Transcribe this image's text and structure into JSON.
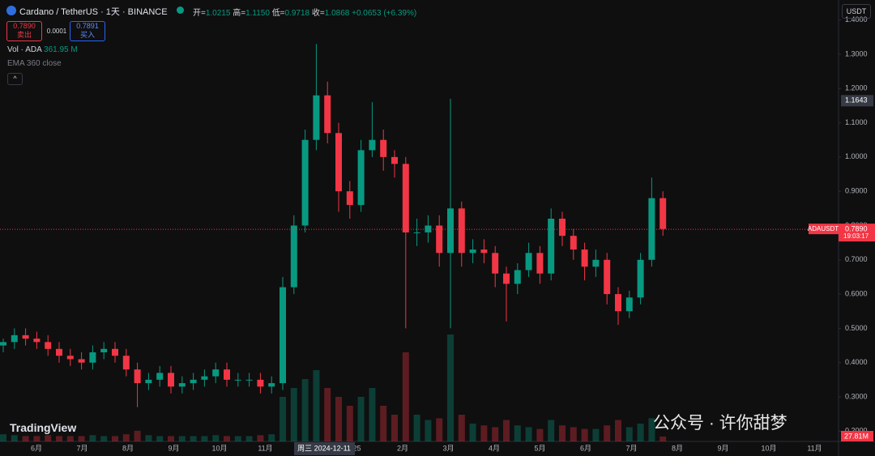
{
  "header": {
    "symbol": "Cardano / TetherUS · 1天 · BINANCE",
    "open_label": "开=",
    "open": "1.0215",
    "high_label": "高=",
    "high": "1.1150",
    "low_label": "低=",
    "low": "0.9718",
    "close_label": "收=",
    "close": "1.0868",
    "change": "+0.0653 (+6.39%)",
    "sell_price": "0.7890",
    "sell_label": "卖出",
    "spread": "0.0001",
    "buy_price": "0.7891",
    "buy_label": "买入",
    "volume_indicator": "Vol · ADA",
    "volume_value": "361.95 M",
    "ema_indicator": "EMA 360 close",
    "currency": "USDT",
    "logo": "TradingView",
    "watermark": "公众号 · 许你甜梦"
  },
  "chart_data": {
    "type": "candlestick",
    "up_color": "#089981",
    "down_color": "#f23645",
    "open": [
      0.45,
      0.46,
      0.48,
      0.47,
      0.46,
      0.44,
      0.42,
      0.41,
      0.4,
      0.43,
      0.44,
      0.42,
      0.38,
      0.34,
      0.35,
      0.37,
      0.33,
      0.34,
      0.35,
      0.36,
      0.38,
      0.35,
      0.35,
      0.35,
      0.33,
      0.34,
      0.62,
      0.8,
      1.05,
      1.18,
      1.07,
      0.9,
      0.86,
      1.02,
      1.05,
      1.0,
      0.98,
      0.78,
      0.78,
      0.8,
      0.72,
      0.85,
      0.72,
      0.73,
      0.72,
      0.66,
      0.63,
      0.67,
      0.72,
      0.66,
      0.82,
      0.77,
      0.73,
      0.68,
      0.7,
      0.6,
      0.55,
      0.59,
      0.7,
      0.88
    ],
    "high": [
      0.47,
      0.5,
      0.5,
      0.49,
      0.48,
      0.46,
      0.44,
      0.43,
      0.45,
      0.46,
      0.46,
      0.44,
      0.4,
      0.37,
      0.39,
      0.39,
      0.36,
      0.37,
      0.38,
      0.4,
      0.4,
      0.37,
      0.37,
      0.37,
      0.36,
      0.65,
      0.83,
      1.08,
      1.33,
      1.22,
      1.1,
      0.93,
      1.05,
      1.16,
      1.08,
      1.02,
      1.0,
      0.82,
      0.83,
      0.83,
      1.17,
      0.87,
      0.76,
      0.76,
      0.74,
      0.68,
      0.69,
      0.75,
      0.74,
      0.85,
      0.84,
      0.79,
      0.75,
      0.73,
      0.72,
      0.62,
      0.61,
      0.72,
      0.94,
      0.9
    ],
    "low": [
      0.43,
      0.44,
      0.45,
      0.44,
      0.42,
      0.4,
      0.39,
      0.38,
      0.38,
      0.41,
      0.4,
      0.36,
      0.27,
      0.32,
      0.33,
      0.31,
      0.31,
      0.32,
      0.33,
      0.34,
      0.33,
      0.33,
      0.33,
      0.31,
      0.31,
      0.32,
      0.6,
      0.78,
      1.02,
      1.04,
      0.84,
      0.82,
      0.84,
      1.0,
      0.96,
      0.94,
      0.5,
      0.74,
      0.75,
      0.68,
      0.5,
      0.68,
      0.69,
      0.69,
      0.62,
      0.52,
      0.6,
      0.65,
      0.63,
      0.64,
      0.74,
      0.7,
      0.64,
      0.65,
      0.57,
      0.51,
      0.53,
      0.57,
      0.68,
      0.77
    ],
    "close": [
      0.46,
      0.48,
      0.47,
      0.46,
      0.44,
      0.42,
      0.41,
      0.4,
      0.43,
      0.44,
      0.42,
      0.38,
      0.34,
      0.35,
      0.37,
      0.33,
      0.34,
      0.35,
      0.36,
      0.38,
      0.35,
      0.35,
      0.35,
      0.33,
      0.34,
      0.62,
      0.8,
      1.05,
      1.18,
      1.07,
      0.9,
      0.86,
      1.02,
      1.05,
      1.0,
      0.98,
      0.78,
      0.78,
      0.8,
      0.72,
      0.85,
      0.72,
      0.73,
      0.72,
      0.66,
      0.63,
      0.67,
      0.72,
      0.66,
      0.82,
      0.77,
      0.73,
      0.68,
      0.7,
      0.6,
      0.55,
      0.59,
      0.7,
      0.88,
      0.79
    ],
    "volume": [
      40,
      35,
      30,
      30,
      35,
      30,
      30,
      30,
      35,
      30,
      30,
      40,
      60,
      35,
      30,
      30,
      30,
      30,
      30,
      35,
      30,
      30,
      30,
      35,
      40,
      250,
      300,
      350,
      400,
      300,
      250,
      200,
      250,
      300,
      200,
      150,
      500,
      150,
      120,
      130,
      600,
      150,
      100,
      90,
      80,
      120,
      90,
      80,
      70,
      120,
      90,
      80,
      70,
      70,
      90,
      120,
      80,
      100,
      130,
      27.81
    ],
    "last_volume_label": "27.81M",
    "ylim": [
      0.17,
      1.411
    ],
    "yticks": [
      {
        "value": 0.2,
        "label": "0.2000"
      },
      {
        "value": 0.3,
        "label": "0.3000"
      },
      {
        "value": 0.4,
        "label": "0.4000"
      },
      {
        "value": 0.5,
        "label": "0.5000"
      },
      {
        "value": 0.6,
        "label": "0.6000"
      },
      {
        "value": 0.7,
        "label": "0.7000"
      },
      {
        "value": 0.8,
        "label": "0.8000"
      },
      {
        "value": 0.9,
        "label": "0.9000"
      },
      {
        "value": 1.0,
        "label": "1.0000"
      },
      {
        "value": 1.1,
        "label": "1.1000"
      },
      {
        "value": 1.2,
        "label": "1.2000"
      },
      {
        "value": 1.3,
        "label": "1.3000"
      },
      {
        "value": 1.4,
        "label": "1.4000"
      }
    ],
    "x_axis_labels": [
      "6月",
      "7月",
      "8月",
      "9月",
      "10月",
      "11月",
      null,
      "25",
      "2月",
      "3月",
      "4月",
      "5月",
      "6月",
      "7月",
      "8月",
      "9月",
      "10月",
      "11月"
    ],
    "crosshair_date": "周三 2024-12-11",
    "crosshair_price": 1.1643,
    "symbol_tag": "ADAUSDT",
    "last_price": {
      "value": 0.789,
      "label": "0.7890"
    },
    "countdown": "19:03:17"
  }
}
